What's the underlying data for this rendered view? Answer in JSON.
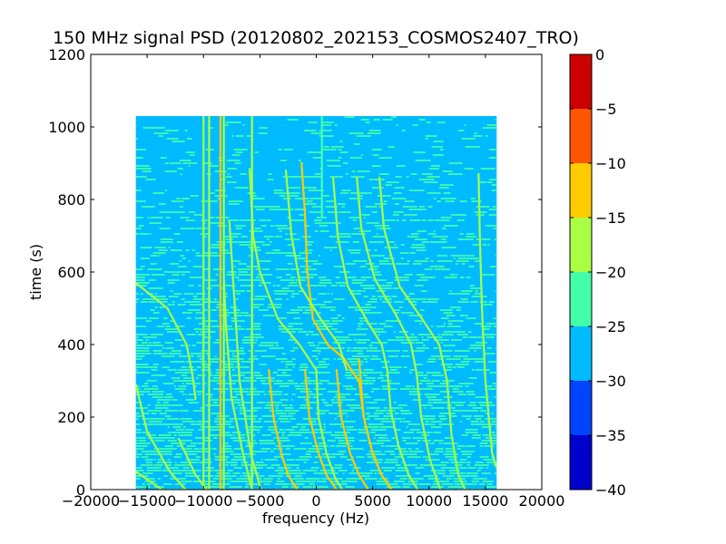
{
  "chart_data": {
    "type": "heatmap",
    "title": "150 MHz signal PSD (20120802_202153_COSMOS2407_TRO)",
    "xlabel": "frequency (Hz)",
    "ylabel": "time (s)",
    "xlim": [
      -20000,
      20000
    ],
    "ylim": [
      0,
      1200
    ],
    "xticks": [
      -20000,
      -15000,
      -10000,
      -5000,
      0,
      5000,
      10000,
      15000,
      20000
    ],
    "xtick_labels": [
      "−20000",
      "−15000",
      "−10000",
      "−5000",
      "0",
      "5000",
      "10000",
      "15000",
      "20000"
    ],
    "yticks": [
      0,
      200,
      400,
      600,
      800,
      1000,
      1200
    ],
    "ytick_labels": [
      "0",
      "200",
      "400",
      "600",
      "800",
      "1000",
      "1200"
    ],
    "data_extent": {
      "freq_range": [
        -16000,
        16000
      ],
      "time_range": [
        0,
        1030
      ]
    },
    "background_level": -28,
    "colorbar": {
      "min": -40,
      "max": 0,
      "ticks": [
        0,
        -5,
        -10,
        -15,
        -20,
        -25,
        -30,
        -35,
        -40
      ],
      "tick_labels": [
        "0",
        "−5",
        "−10",
        "−15",
        "−20",
        "−25",
        "−30",
        "−35",
        "−40"
      ],
      "levels": [
        {
          "range": [
            -40,
            -35
          ],
          "color": "#0000cc"
        },
        {
          "range": [
            -35,
            -30
          ],
          "color": "#0044ff"
        },
        {
          "range": [
            -30,
            -25
          ],
          "color": "#00bbff"
        },
        {
          "range": [
            -25,
            -20
          ],
          "color": "#44ffaa"
        },
        {
          "range": [
            -20,
            -15
          ],
          "color": "#aaff44"
        },
        {
          "range": [
            -15,
            -10
          ],
          "color": "#ffcc00"
        },
        {
          "range": [
            -10,
            -5
          ],
          "color": "#ff5500"
        },
        {
          "range": [
            -5,
            0
          ],
          "color": "#cc0000"
        }
      ]
    },
    "vertical_lines": [
      {
        "freq": -10000,
        "level": -18,
        "t_range": [
          0,
          1030
        ]
      },
      {
        "freq": -9500,
        "level": -18,
        "t_range": [
          0,
          1030
        ]
      },
      {
        "freq": -8500,
        "level": -12,
        "t_range": [
          0,
          1030
        ]
      },
      {
        "freq": -8200,
        "level": -16,
        "t_range": [
          0,
          1030
        ]
      },
      {
        "freq": -5700,
        "level": -20,
        "t_range": [
          0,
          1030
        ]
      },
      {
        "freq": 500,
        "level": -21,
        "t_range": [
          750,
          1030
        ]
      }
    ],
    "tracks": [
      {
        "level": -12,
        "points": [
          [
            -4200,
            330
          ],
          [
            -3800,
            200
          ],
          [
            -3100,
            100
          ],
          [
            -2500,
            40
          ],
          [
            -1700,
            0
          ]
        ]
      },
      {
        "level": -12,
        "points": [
          [
            -1000,
            330
          ],
          [
            -600,
            200
          ],
          [
            200,
            100
          ],
          [
            900,
            40
          ],
          [
            1800,
            0
          ]
        ]
      },
      {
        "level": -12,
        "points": [
          [
            1800,
            330
          ],
          [
            2200,
            200
          ],
          [
            3000,
            100
          ],
          [
            3800,
            40
          ],
          [
            4600,
            0
          ]
        ]
      },
      {
        "level": -12,
        "points": [
          [
            3800,
            360
          ],
          [
            4200,
            200
          ],
          [
            5000,
            100
          ],
          [
            5800,
            40
          ],
          [
            6700,
            0
          ]
        ]
      },
      {
        "level": -12,
        "points": [
          [
            -1300,
            900
          ],
          [
            -1000,
            760
          ],
          [
            -800,
            600
          ],
          [
            -300,
            470
          ],
          [
            1000,
            400
          ],
          [
            2500,
            360
          ],
          [
            3300,
            320
          ],
          [
            3800,
            300
          ],
          [
            4200,
            200
          ],
          [
            5000,
            100
          ],
          [
            5800,
            40
          ],
          [
            6700,
            0
          ]
        ]
      },
      {
        "level": -17,
        "points": [
          [
            -16000,
            570
          ],
          [
            -13200,
            500
          ],
          [
            -11500,
            400
          ],
          [
            -11000,
            320
          ],
          [
            -10700,
            250
          ]
        ]
      },
      {
        "level": -17,
        "points": [
          [
            -16000,
            290
          ],
          [
            -15000,
            160
          ],
          [
            -13000,
            50
          ],
          [
            -11600,
            0
          ]
        ]
      },
      {
        "level": -17,
        "points": [
          [
            -16000,
            50
          ],
          [
            -13700,
            0
          ]
        ]
      },
      {
        "level": -17,
        "points": [
          [
            -5900,
            880
          ],
          [
            -5600,
            700
          ],
          [
            -5000,
            600
          ],
          [
            -3400,
            470
          ],
          [
            -1500,
            400
          ],
          [
            0,
            330
          ],
          [
            200,
            200
          ],
          [
            900,
            100
          ],
          [
            1700,
            30
          ],
          [
            2300,
            0
          ]
        ]
      },
      {
        "level": -17,
        "points": [
          [
            -2700,
            880
          ],
          [
            -2200,
            700
          ],
          [
            -1400,
            560
          ],
          [
            400,
            470
          ],
          [
            2000,
            400
          ],
          [
            2700,
            330
          ]
        ]
      },
      {
        "level": -17,
        "points": [
          [
            1500,
            860
          ],
          [
            1900,
            700
          ],
          [
            2800,
            560
          ],
          [
            4600,
            460
          ],
          [
            5800,
            400
          ],
          [
            6300,
            330
          ],
          [
            6600,
            220
          ],
          [
            7300,
            120
          ],
          [
            8200,
            40
          ],
          [
            9000,
            0
          ]
        ]
      },
      {
        "level": -17,
        "points": [
          [
            3600,
            860
          ],
          [
            4000,
            720
          ],
          [
            5200,
            580
          ],
          [
            7100,
            480
          ],
          [
            8400,
            400
          ],
          [
            8900,
            320
          ],
          [
            9300,
            200
          ],
          [
            10100,
            80
          ],
          [
            11000,
            0
          ]
        ]
      },
      {
        "level": -17,
        "points": [
          [
            5600,
            860
          ],
          [
            6000,
            720
          ],
          [
            7400,
            560
          ],
          [
            9400,
            470
          ],
          [
            10900,
            400
          ],
          [
            11600,
            300
          ],
          [
            12000,
            150
          ],
          [
            12600,
            40
          ],
          [
            13200,
            0
          ]
        ]
      },
      {
        "level": -17,
        "points": [
          [
            14400,
            870
          ],
          [
            14500,
            700
          ],
          [
            14700,
            500
          ],
          [
            15000,
            300
          ],
          [
            15600,
            100
          ],
          [
            16000,
            60
          ]
        ]
      },
      {
        "level": -17,
        "points": [
          [
            -8200,
            580
          ],
          [
            -8000,
            450
          ],
          [
            -7500,
            250
          ],
          [
            -6500,
            100
          ],
          [
            -5700,
            0
          ]
        ]
      },
      {
        "level": -17,
        "points": [
          [
            -7700,
            740
          ],
          [
            -7300,
            540
          ],
          [
            -6800,
            300
          ],
          [
            -5800,
            100
          ],
          [
            -4900,
            0
          ]
        ]
      },
      {
        "level": -17,
        "points": [
          [
            -12200,
            140
          ],
          [
            -10700,
            40
          ],
          [
            -9700,
            0
          ]
        ]
      }
    ]
  }
}
